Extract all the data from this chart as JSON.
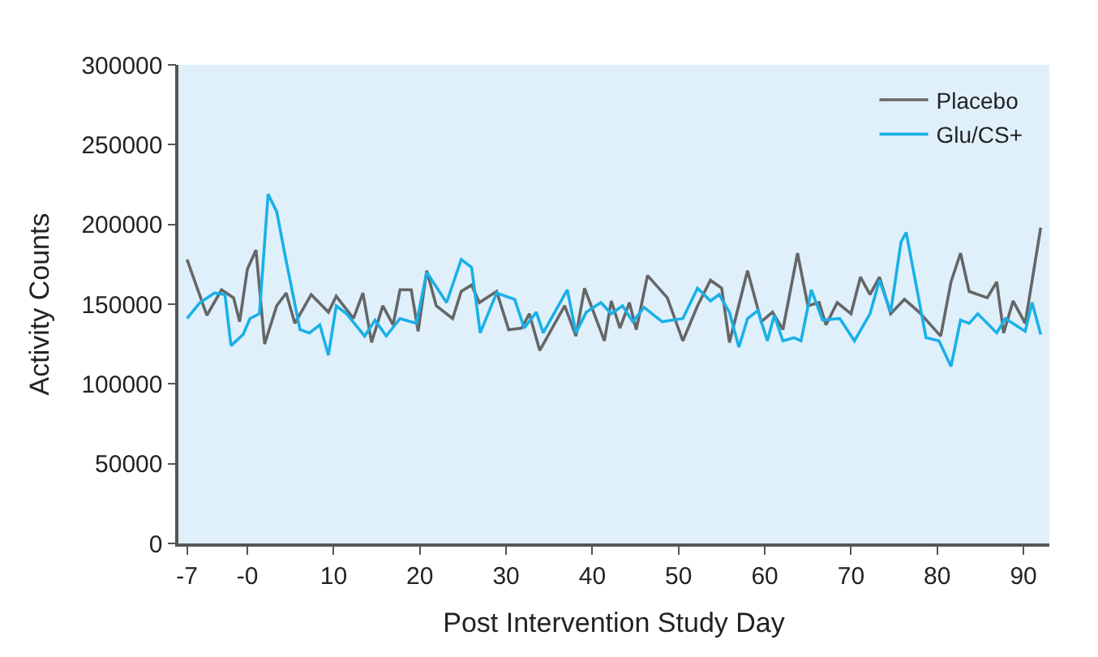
{
  "chart_data": {
    "type": "line",
    "xlabel": "Post Intervention Study Day",
    "ylabel": "Activity Counts",
    "xlim": [
      -8,
      93
    ],
    "xticks": [
      -7,
      {
        "value": 0,
        "label": "-0"
      },
      10,
      20,
      30,
      40,
      50,
      60,
      70,
      80,
      90
    ],
    "ylim": [
      0,
      300000
    ],
    "yticks": [
      0,
      50000,
      100000,
      150000,
      200000,
      250000,
      300000
    ],
    "grid": false,
    "legend": "top right",
    "marker": "none",
    "line_style": "solid",
    "series": [
      {
        "name": "Placebo",
        "color": "#666666",
        "x": [
          -7,
          -4.7,
          -3,
          -1.6,
          -0.9,
          0,
          1,
          2,
          3.4,
          4.5,
          5.5,
          7.4,
          9.4,
          10.3,
          12.3,
          13.4,
          14.4,
          15.7,
          16.9,
          17.7,
          19,
          19.8,
          20.8,
          21.9,
          23.8,
          24.8,
          26,
          26.9,
          28.9,
          30.3,
          31.8,
          32.7,
          33.9,
          36.8,
          38.1,
          39.1,
          41.4,
          42.2,
          43.2,
          44.3,
          45.1,
          46.4,
          48.7,
          50.5,
          52.2,
          53.7,
          55,
          55.9,
          58,
          59.6,
          60.9,
          62.1,
          63.8,
          65,
          66.3,
          67.1,
          68.4,
          70,
          71.1,
          72.2,
          73.3,
          74.6,
          76.2,
          77.9,
          80.4,
          81.6,
          82.7,
          83.7,
          85.8,
          86.9,
          87.7,
          88.8,
          90.2,
          92
        ],
        "values": [
          178000,
          143000,
          159000,
          154000,
          139000,
          172000,
          184000,
          125000,
          149000,
          157000,
          138000,
          156000,
          145000,
          155000,
          141000,
          157000,
          126000,
          149000,
          137000,
          159000,
          159000,
          133000,
          171000,
          149000,
          141000,
          158000,
          162000,
          151000,
          158000,
          134000,
          135000,
          144000,
          121000,
          149000,
          130000,
          160000,
          127000,
          152000,
          135000,
          151000,
          134000,
          168000,
          154000,
          127000,
          149000,
          165000,
          160000,
          126000,
          171000,
          139000,
          145000,
          134000,
          182000,
          149000,
          151000,
          137000,
          151000,
          144000,
          167000,
          156000,
          167000,
          144000,
          153000,
          145000,
          130000,
          164000,
          182000,
          158000,
          154000,
          164000,
          132000,
          152000,
          138000,
          198000
        ]
      },
      {
        "name": "Glu/CS+",
        "color": "#1ab0e8",
        "x": [
          -7,
          -5.5,
          -3.8,
          -2.6,
          -1.9,
          -0.5,
          0.3,
          1.4,
          2.4,
          3.4,
          4.5,
          6.1,
          7.2,
          8.4,
          9.4,
          10.3,
          11.5,
          13.6,
          14.8,
          16.1,
          17.7,
          19.6,
          20.8,
          23.1,
          24.8,
          26,
          27,
          28.9,
          31,
          32.1,
          33.5,
          34.3,
          37.1,
          38.1,
          39.3,
          41,
          42.2,
          43.5,
          44.7,
          46,
          48.1,
          50.5,
          52.2,
          53.7,
          54.7,
          55.9,
          57,
          58,
          59.2,
          60.3,
          61.1,
          62.1,
          63.4,
          64.2,
          65.4,
          66.7,
          68.7,
          70.4,
          72.2,
          73.3,
          74.6,
          75.8,
          76.4,
          78.7,
          80.2,
          81.6,
          82.7,
          83.7,
          84.7,
          86.9,
          87.9,
          90.2,
          91,
          92
        ],
        "values": [
          141000,
          151000,
          157000,
          156000,
          124000,
          131000,
          141000,
          144000,
          219000,
          208000,
          177000,
          134000,
          132000,
          137000,
          118000,
          149000,
          144000,
          130000,
          140000,
          130000,
          141000,
          138000,
          170000,
          151000,
          178000,
          173000,
          132000,
          157000,
          153000,
          135000,
          145000,
          132000,
          159000,
          132000,
          145000,
          151000,
          144000,
          149000,
          139000,
          148000,
          139000,
          141000,
          160000,
          152000,
          156000,
          145000,
          123000,
          141000,
          146000,
          127000,
          143000,
          127000,
          129000,
          127000,
          159000,
          140000,
          141000,
          127000,
          144000,
          165000,
          145000,
          189000,
          195000,
          129000,
          127000,
          111000,
          140000,
          138000,
          144000,
          132000,
          141000,
          133000,
          151000,
          131000
        ]
      }
    ]
  }
}
